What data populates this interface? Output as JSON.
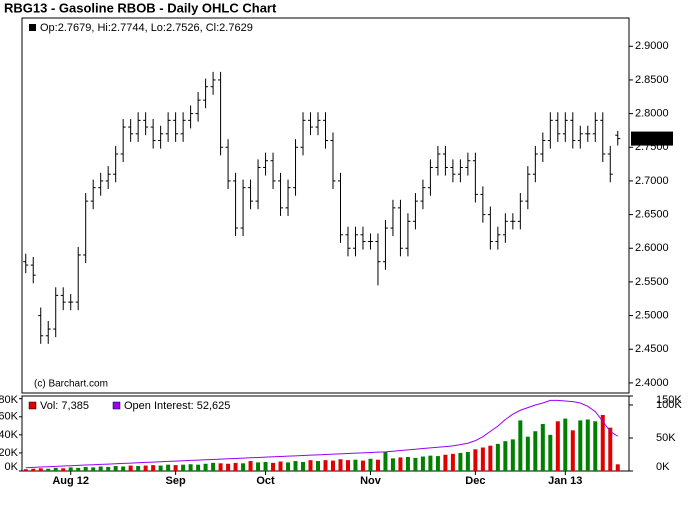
{
  "chart_data": [
    {
      "type": "ohlc",
      "title": "RBG13 - Gasoline RBOB - Daily OHLC Chart",
      "info": "Op:2.7679, Hi:2.7744, Lo:2.7526, Cl:2.7629",
      "copyright": "(c) Barchart.com",
      "color": "#000000",
      "xlim": [
        -0.5,
        80.5
      ],
      "ylim": [
        2.385,
        2.942
      ],
      "yticks": [
        {
          "value": 2.9,
          "label": "2.9000"
        },
        {
          "value": 2.85,
          "label": "2.8500"
        },
        {
          "value": 2.8,
          "label": "2.8000"
        },
        {
          "value": 2.75,
          "label": "2.7500"
        },
        {
          "value": 2.7,
          "label": "2.7000"
        },
        {
          "value": 2.65,
          "label": "2.6500"
        },
        {
          "value": 2.6,
          "label": "2.6000"
        },
        {
          "value": 2.55,
          "label": "2.5500"
        },
        {
          "value": 2.5,
          "label": "2.5000"
        },
        {
          "value": 2.45,
          "label": "2.4500"
        },
        {
          "value": 2.4,
          "label": "2.4000"
        }
      ],
      "open": [
        2.58,
        2.575,
        2.5,
        2.47,
        2.48,
        2.53,
        2.52,
        2.52,
        2.59,
        2.67,
        2.69,
        2.7,
        2.71,
        2.74,
        2.78,
        2.77,
        2.79,
        2.78,
        2.76,
        2.77,
        2.79,
        2.77,
        2.79,
        2.8,
        2.82,
        2.84,
        2.85,
        2.75,
        2.7,
        2.63,
        2.69,
        2.67,
        2.72,
        2.73,
        2.7,
        2.66,
        2.69,
        2.75,
        2.79,
        2.78,
        2.79,
        2.76,
        2.7,
        2.62,
        2.6,
        2.62,
        2.61,
        2.61,
        2.58,
        2.63,
        2.66,
        2.6,
        2.64,
        2.67,
        2.69,
        2.72,
        2.74,
        2.72,
        2.71,
        2.72,
        2.73,
        2.68,
        2.65,
        2.61,
        2.62,
        2.64,
        2.64,
        2.67,
        2.71,
        2.74,
        2.76,
        2.79,
        2.77,
        2.79,
        2.76,
        2.77,
        2.77,
        2.79,
        2.74,
        2.7679
      ],
      "high": [
        2.592,
        2.587,
        2.512,
        2.492,
        2.542,
        2.542,
        2.532,
        2.602,
        2.682,
        2.702,
        2.712,
        2.722,
        2.752,
        2.792,
        2.792,
        2.802,
        2.802,
        2.792,
        2.782,
        2.802,
        2.802,
        2.802,
        2.812,
        2.832,
        2.852,
        2.862,
        2.862,
        2.762,
        2.712,
        2.702,
        2.702,
        2.732,
        2.742,
        2.742,
        2.712,
        2.702,
        2.762,
        2.802,
        2.802,
        2.802,
        2.802,
        2.772,
        2.712,
        2.632,
        2.632,
        2.632,
        2.622,
        2.622,
        2.642,
        2.672,
        2.672,
        2.652,
        2.682,
        2.702,
        2.732,
        2.752,
        2.752,
        2.732,
        2.732,
        2.742,
        2.742,
        2.692,
        2.662,
        2.632,
        2.652,
        2.652,
        2.682,
        2.722,
        2.752,
        2.772,
        2.802,
        2.802,
        2.802,
        2.802,
        2.782,
        2.782,
        2.802,
        2.802,
        2.752,
        2.7744
      ],
      "low": [
        2.563,
        2.548,
        2.458,
        2.458,
        2.468,
        2.508,
        2.508,
        2.508,
        2.578,
        2.658,
        2.678,
        2.688,
        2.698,
        2.728,
        2.758,
        2.758,
        2.768,
        2.748,
        2.748,
        2.758,
        2.758,
        2.758,
        2.778,
        2.788,
        2.808,
        2.828,
        2.738,
        2.688,
        2.618,
        2.618,
        2.658,
        2.658,
        2.708,
        2.688,
        2.648,
        2.648,
        2.678,
        2.738,
        2.768,
        2.768,
        2.748,
        2.688,
        2.608,
        2.588,
        2.588,
        2.598,
        2.598,
        2.545,
        2.568,
        2.618,
        2.588,
        2.588,
        2.628,
        2.658,
        2.678,
        2.708,
        2.708,
        2.698,
        2.698,
        2.708,
        2.668,
        2.638,
        2.598,
        2.598,
        2.608,
        2.628,
        2.628,
        2.658,
        2.698,
        2.728,
        2.748,
        2.758,
        2.758,
        2.748,
        2.748,
        2.758,
        2.758,
        2.728,
        2.698,
        2.7526
      ],
      "close": [
        2.575,
        2.56,
        2.47,
        2.48,
        2.53,
        2.52,
        2.52,
        2.59,
        2.67,
        2.69,
        2.7,
        2.71,
        2.74,
        2.78,
        2.77,
        2.79,
        2.78,
        2.76,
        2.77,
        2.79,
        2.77,
        2.79,
        2.8,
        2.82,
        2.84,
        2.85,
        2.75,
        2.7,
        2.63,
        2.69,
        2.67,
        2.72,
        2.73,
        2.7,
        2.66,
        2.69,
        2.75,
        2.79,
        2.78,
        2.79,
        2.76,
        2.7,
        2.62,
        2.6,
        2.62,
        2.61,
        2.61,
        2.58,
        2.63,
        2.66,
        2.6,
        2.64,
        2.67,
        2.69,
        2.72,
        2.74,
        2.72,
        2.71,
        2.72,
        2.73,
        2.68,
        2.65,
        2.61,
        2.62,
        2.64,
        2.64,
        2.67,
        2.71,
        2.74,
        2.76,
        2.79,
        2.77,
        2.79,
        2.76,
        2.77,
        2.77,
        2.79,
        2.74,
        2.71,
        2.7629
      ]
    },
    {
      "type": "volume",
      "xlim": [
        -0.5,
        80.5
      ],
      "ylim": [
        0,
        83000
      ],
      "y2lim": [
        0,
        113600
      ],
      "up_color": "#008000",
      "down_color": "#e00000",
      "yticks": [
        {
          "value": 0,
          "label": "0K"
        },
        {
          "value": 20000,
          "label": "20K"
        },
        {
          "value": 40000,
          "label": "40K"
        },
        {
          "value": 60000,
          "label": "60K"
        },
        {
          "value": 80000,
          "label": "80K"
        }
      ],
      "y2ticks": [
        {
          "value": 0,
          "label": "0K"
        },
        {
          "value": 50000,
          "label": "50K"
        },
        {
          "value": 100000,
          "label": "100K"
        },
        {
          "value": 150000,
          "label": "150K"
        }
      ],
      "xticks": [
        {
          "value": 6,
          "label": "Aug 12"
        },
        {
          "value": 20,
          "label": "Sep"
        },
        {
          "value": 32,
          "label": "Oct"
        },
        {
          "value": 46,
          "label": "Nov"
        },
        {
          "value": 60,
          "label": "Dec"
        },
        {
          "value": 72,
          "label": "Jan 13"
        }
      ],
      "series": [
        {
          "name": "Vol: 7,385",
          "color": "#e00000",
          "values": [
            2000,
            2500,
            3000,
            2500,
            3500,
            3000,
            4000,
            3500,
            4500,
            4000,
            5000,
            4500,
            5500,
            5000,
            6000,
            5500,
            6000,
            6500,
            6000,
            7000,
            6500,
            7000,
            7500,
            7000,
            8000,
            9000,
            8500,
            8000,
            9000,
            8500,
            11000,
            9500,
            10000,
            9000,
            10500,
            9500,
            11000,
            10000,
            12000,
            11000,
            12000,
            11500,
            13000,
            12000,
            12500,
            11500,
            13500,
            12500,
            21000,
            14000,
            15000,
            15500,
            14500,
            16000,
            17000,
            16500,
            18000,
            19000,
            20000,
            21000,
            24000,
            26000,
            28000,
            30000,
            33000,
            35000,
            56000,
            38000,
            44000,
            52000,
            40000,
            55000,
            58000,
            45000,
            56000,
            57000,
            55000,
            62000,
            48000,
            7385
          ]
        },
        {
          "name": "Open Interest: 52,625",
          "color": "#9900ff",
          "axis": "y2",
          "values": [
            5000,
            5500,
            6000,
            6500,
            7000,
            7500,
            8000,
            8500,
            9000,
            9500,
            10000,
            10500,
            11000,
            11500,
            12000,
            12500,
            13000,
            13500,
            14000,
            14500,
            15000,
            15500,
            16000,
            16500,
            17000,
            17500,
            18000,
            18500,
            19000,
            19500,
            20000,
            20500,
            21000,
            21500,
            22000,
            22500,
            23000,
            23500,
            24000,
            24500,
            25000,
            25500,
            26000,
            26500,
            27000,
            27500,
            28000,
            28500,
            29000,
            30000,
            31000,
            32000,
            33000,
            34000,
            35000,
            36000,
            37000,
            38000,
            40000,
            42000,
            46000,
            52000,
            60000,
            68000,
            78000,
            86000,
            92000,
            96000,
            100000,
            103000,
            107000,
            107000,
            106000,
            105000,
            103000,
            98000,
            90000,
            75000,
            60000,
            52625
          ]
        }
      ]
    }
  ]
}
